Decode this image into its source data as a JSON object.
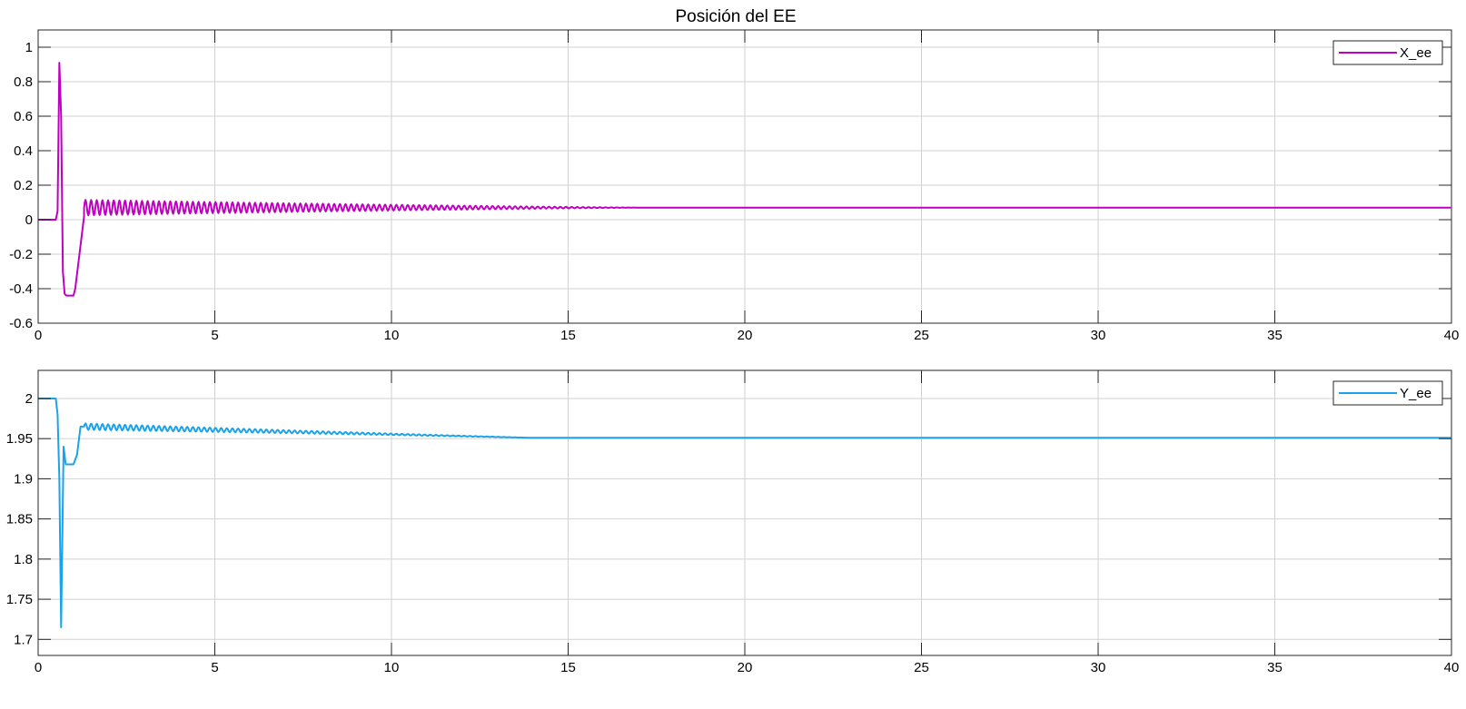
{
  "chart_data": [
    {
      "type": "line",
      "title": "Posición del EE",
      "xlabel": "",
      "ylabel": "",
      "xlim": [
        0,
        40
      ],
      "ylim": [
        -0.6,
        1.1
      ],
      "xticks": [
        0,
        5,
        10,
        15,
        20,
        25,
        30,
        35,
        40
      ],
      "xtick_labels": [
        "0",
        "5",
        "10",
        "15",
        "20",
        "25",
        "30",
        "35",
        "40"
      ],
      "yticks": [
        -0.6,
        -0.4,
        -0.2,
        0,
        0.2,
        0.4,
        0.6,
        0.8,
        1
      ],
      "ytick_labels": [
        "-0.6",
        "-0.4",
        "-0.2",
        "0",
        "0.2",
        "0.4",
        "0.6",
        "0.8",
        "1"
      ],
      "grid": true,
      "legend_position": "top-right",
      "series": [
        {
          "name": "X_ee",
          "color": "#c000c0",
          "x": [
            0,
            0.5,
            0.55,
            0.6,
            0.65,
            0.7,
            0.75,
            0.8,
            1.0,
            1.05,
            1.3,
            40
          ],
          "y": [
            0,
            0,
            0.05,
            0.91,
            0.6,
            -0.3,
            -0.43,
            -0.44,
            -0.44,
            -0.4,
            0.02,
            0.07
          ],
          "oscillation": {
            "start": 1.3,
            "end": 17,
            "center": 0.07,
            "amplitude_start": 0.045,
            "period": 0.16
          }
        }
      ]
    },
    {
      "type": "line",
      "title": "",
      "xlabel": "",
      "ylabel": "",
      "xlim": [
        0,
        40
      ],
      "ylim": [
        1.68,
        2.035
      ],
      "xticks": [
        0,
        5,
        10,
        15,
        20,
        25,
        30,
        35,
        40
      ],
      "xtick_labels": [
        "0",
        "5",
        "10",
        "15",
        "20",
        "25",
        "30",
        "35",
        "40"
      ],
      "yticks": [
        1.7,
        1.75,
        1.8,
        1.85,
        1.9,
        1.95,
        2
      ],
      "ytick_labels": [
        "1.7",
        "1.75",
        "1.8",
        "1.85",
        "1.9",
        "1.95",
        "2"
      ],
      "grid": true,
      "legend_position": "top-right",
      "series": [
        {
          "name": "Y_ee",
          "color": "#1aa3ea",
          "x": [
            0,
            0.5,
            0.55,
            0.6,
            0.65,
            0.72,
            0.78,
            0.85,
            1.0,
            1.1,
            1.2,
            1.3,
            40
          ],
          "y": [
            2.0,
            2.0,
            1.98,
            1.9,
            1.715,
            1.94,
            1.918,
            1.918,
            1.918,
            1.93,
            1.965,
            1.965,
            1.951
          ],
          "oscillation": {
            "start": 1.3,
            "end": 14,
            "center_start": 1.965,
            "center_end": 1.951,
            "amplitude_start": 0.004,
            "period": 0.16
          }
        }
      ]
    }
  ]
}
